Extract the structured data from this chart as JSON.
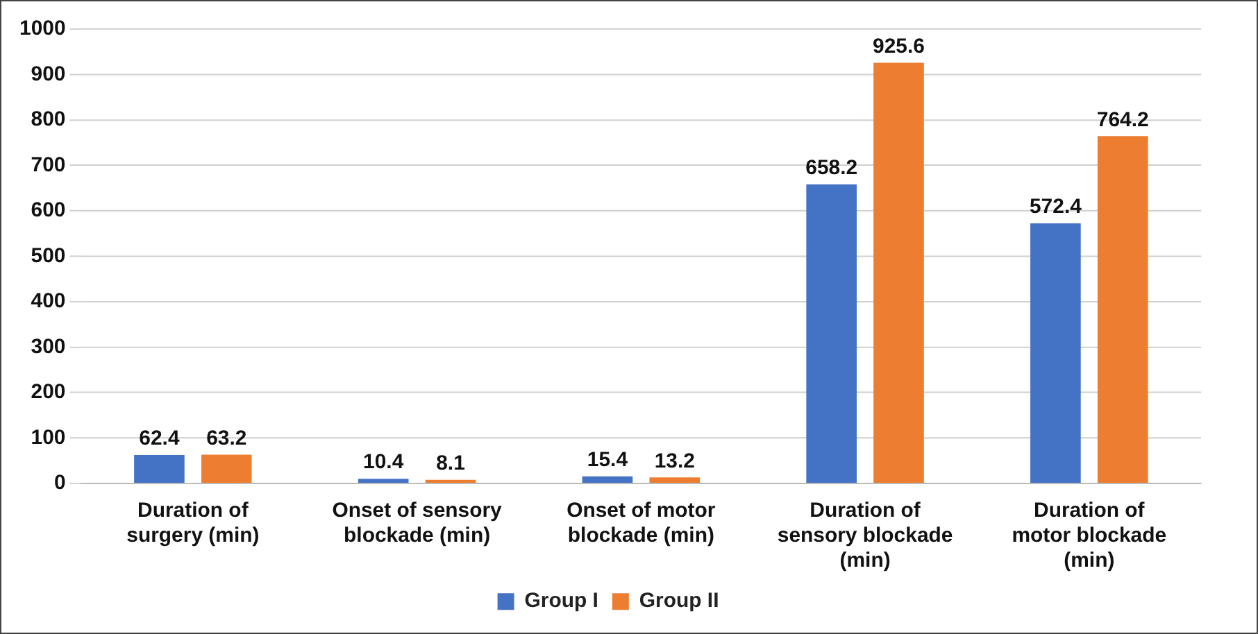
{
  "chart_data": {
    "type": "bar",
    "categories": [
      "Duration of surgery (min)",
      "Onset of sensory blockade (min)",
      "Onset of motor blockade (min)",
      "Duration of sensory blockade (min)",
      "Duration of motor blockade (min)"
    ],
    "series": [
      {
        "name": "Group I",
        "color": "#4472c4",
        "values": [
          62.4,
          10.4,
          15.4,
          658.2,
          572.4
        ]
      },
      {
        "name": "Group II",
        "color": "#ed7d31",
        "values": [
          63.2,
          8.1,
          13.2,
          925.6,
          764.2
        ]
      }
    ],
    "ylim": [
      0,
      1000
    ],
    "yticks": [
      0,
      100,
      200,
      300,
      400,
      500,
      600,
      700,
      800,
      900,
      1000
    ],
    "grid": "y",
    "legend": "bottom",
    "data_labels": true
  }
}
